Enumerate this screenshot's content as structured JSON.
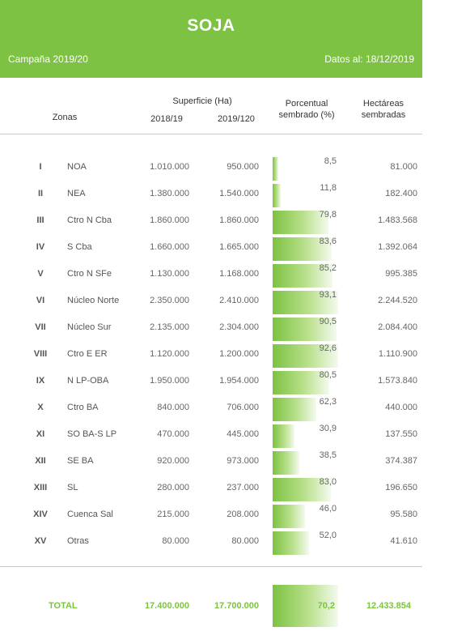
{
  "header": {
    "title": "SOJA",
    "campaign": "Campaña 2019/20",
    "date": "Datos al: 18/12/2019"
  },
  "columns": {
    "zonas": "Zonas",
    "superficie": "Superficie (Ha)",
    "y1": "2018/19",
    "y2": "2019/120",
    "porcentual_1": "Porcentual",
    "porcentual_2": "sembrado (%)",
    "hectareas_1": "Hectáreas",
    "hectareas_2": "sembradas"
  },
  "rows": [
    {
      "roman": "I",
      "zone": "NOA",
      "s1": "1.010.000",
      "s2": "950.000",
      "pct": "8,5",
      "pct_value": 8.5,
      "has": "81.000"
    },
    {
      "roman": "II",
      "zone": "NEA",
      "s1": "1.380.000",
      "s2": "1.540.000",
      "pct": "11,8",
      "pct_value": 11.8,
      "has": "182.400"
    },
    {
      "roman": "III",
      "zone": "Ctro N Cba",
      "s1": "1.860.000",
      "s2": "1.860.000",
      "pct": "79,8",
      "pct_value": 79.8,
      "has": "1.483.568"
    },
    {
      "roman": "IV",
      "zone": "S Cba",
      "s1": "1.660.000",
      "s2": "1.665.000",
      "pct": "83,6",
      "pct_value": 83.6,
      "has": "1.392.064"
    },
    {
      "roman": "V",
      "zone": "Ctro N SFe",
      "s1": "1.130.000",
      "s2": "1.168.000",
      "pct": "85,2",
      "pct_value": 85.2,
      "has": "995.385"
    },
    {
      "roman": "VI",
      "zone": "Núcleo Norte",
      "s1": "2.350.000",
      "s2": "2.410.000",
      "pct": "93,1",
      "pct_value": 93.1,
      "has": "2.244.520"
    },
    {
      "roman": "VII",
      "zone": "Núcleo Sur",
      "s1": "2.135.000",
      "s2": "2.304.000",
      "pct": "90,5",
      "pct_value": 90.5,
      "has": "2.084.400"
    },
    {
      "roman": "VIII",
      "zone": "Ctro E ER",
      "s1": "1.120.000",
      "s2": "1.200.000",
      "pct": "92,6",
      "pct_value": 92.6,
      "has": "1.110.900"
    },
    {
      "roman": "IX",
      "zone": "N LP-OBA",
      "s1": "1.950.000",
      "s2": "1.954.000",
      "pct": "80,5",
      "pct_value": 80.5,
      "has": "1.573.840"
    },
    {
      "roman": "X",
      "zone": "Ctro BA",
      "s1": "840.000",
      "s2": "706.000",
      "pct": "62,3",
      "pct_value": 62.3,
      "has": "440.000"
    },
    {
      "roman": "XI",
      "zone": "SO BA-S LP",
      "s1": "470.000",
      "s2": "445.000",
      "pct": "30,9",
      "pct_value": 30.9,
      "has": "137.550"
    },
    {
      "roman": "XII",
      "zone": "SE BA",
      "s1": "920.000",
      "s2": "973.000",
      "pct": "38,5",
      "pct_value": 38.5,
      "has": "374.387"
    },
    {
      "roman": "XIII",
      "zone": "SL",
      "s1": "280.000",
      "s2": "237.000",
      "pct": "83,0",
      "pct_value": 83.0,
      "has": "196.650"
    },
    {
      "roman": "XIV",
      "zone": "Cuenca Sal",
      "s1": "215.000",
      "s2": "208.000",
      "pct": "46,0",
      "pct_value": 46.0,
      "has": "95.580"
    },
    {
      "roman": "XV",
      "zone": "Otras",
      "s1": "80.000",
      "s2": "80.000",
      "pct": "52,0",
      "pct_value": 52.0,
      "has": "41.610"
    }
  ],
  "total": {
    "label": "TOTAL",
    "s1": "17.400.000",
    "s2": "17.700.000",
    "pct": "70,2",
    "pct_value": 70.2,
    "has": "12.433.854"
  },
  "colors": {
    "accent": "#7dc242"
  }
}
